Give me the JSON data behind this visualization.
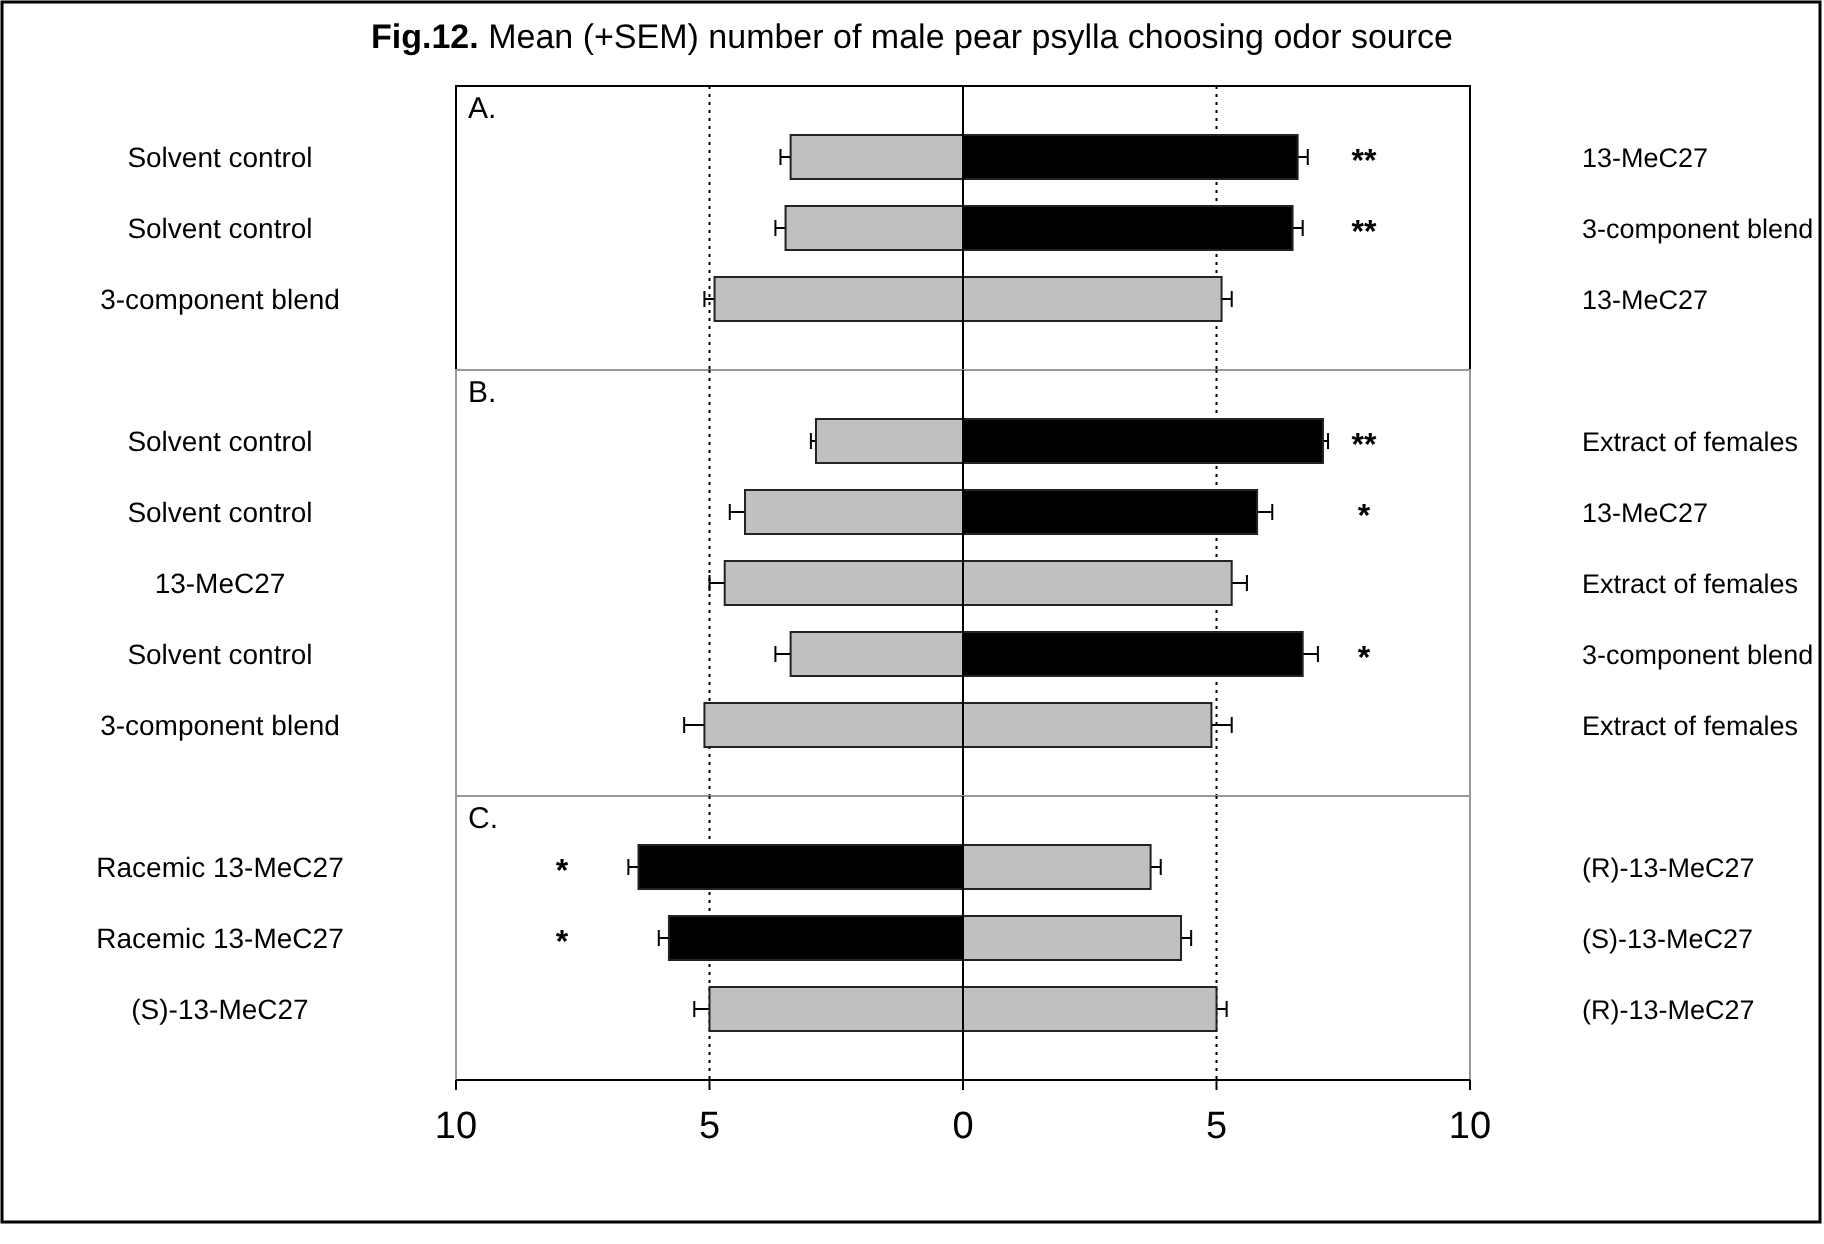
{
  "chart_data": [
    {
      "type": "bar",
      "orientation": "horizontal",
      "stacked": true,
      "title": "Fig.12. Mean (+SEM) number of male pear psylla choosing odor source",
      "categories": [
        "Solvent control",
        "Solvent control",
        "3-component blend"
      ],
      "y2_categories": [
        "13-MeC27",
        "3-component blend",
        "13-MeC27"
      ],
      "series": [
        {
          "colors": [
            "#c0c0c0",
            "#c0c0c0",
            "#c0c0c0"
          ],
          "values": [
            -3.4,
            -3.5,
            -4.9
          ],
          "errors": [
            [
              -3.6,
              -3.4
            ],
            [
              -3.7,
              -3.5
            ],
            [
              -5.1,
              -4.9
            ]
          ]
        },
        {
          "colors": [
            "#000000",
            "#000000",
            "#c0c0c0"
          ],
          "values": [
            6.6,
            6.5,
            5.1
          ],
          "errors": [
            [
              6.6,
              6.8
            ],
            [
              6.5,
              6.7
            ],
            [
              5.1,
              5.3
            ]
          ],
          "value_labels": [
            "**",
            "**",
            null
          ]
        }
      ],
      "xlim": [
        -10,
        10
      ],
      "tick_labels": "y",
      "ref_lines": [
        {
          "axis": "x",
          "value": -5,
          "line_style": "dotted"
        },
        {
          "axis": "x",
          "value": 5,
          "line_style": "dotted"
        }
      ],
      "annotations": [
        "A."
      ]
    },
    {
      "type": "bar",
      "orientation": "horizontal",
      "stacked": true,
      "categories": [
        "Solvent control",
        "Solvent control",
        "13-MeC27",
        "Solvent control",
        "3-component blend"
      ],
      "y2_categories": [
        "Extract of females",
        "13-MeC27",
        "Extract of females",
        "3-component blend",
        "Extract of females"
      ],
      "series": [
        {
          "colors": [
            "#c0c0c0",
            "#c0c0c0",
            "#c0c0c0",
            "#c0c0c0",
            "#c0c0c0"
          ],
          "values": [
            -2.9,
            -4.3,
            -4.7,
            -3.4,
            -5.1
          ],
          "errors": [
            [
              -3.0,
              -2.9
            ],
            [
              -4.6,
              -4.3
            ],
            [
              -5.0,
              -4.7
            ],
            [
              -3.7,
              -3.4
            ],
            [
              -5.5,
              -5.1
            ]
          ]
        },
        {
          "colors": [
            "#000000",
            "#000000",
            "#c0c0c0",
            "#000000",
            "#c0c0c0"
          ],
          "values": [
            7.1,
            5.8,
            5.3,
            6.7,
            4.9
          ],
          "errors": [
            [
              7.1,
              7.2
            ],
            [
              5.8,
              6.1
            ],
            [
              5.3,
              5.6
            ],
            [
              6.7,
              7.0
            ],
            [
              4.9,
              5.3
            ]
          ],
          "value_labels": [
            "**",
            "*",
            null,
            "*",
            null
          ]
        }
      ],
      "xlim": [
        -10,
        10
      ],
      "tick_labels": "y",
      "ref_lines": [
        {
          "axis": "x",
          "value": -5,
          "line_style": "dotted"
        },
        {
          "axis": "x",
          "value": 5,
          "line_style": "dotted"
        }
      ],
      "annotations": [
        "B."
      ]
    },
    {
      "type": "bar",
      "orientation": "horizontal",
      "stacked": true,
      "categories": [
        "Racemic 13-MeC27",
        "Racemic 13-MeC27",
        "(S)-13-MeC27"
      ],
      "y2_categories": [
        "(R)-13-MeC27",
        "(S)-13-MeC27",
        "(R)-13-MeC27"
      ],
      "series": [
        {
          "colors": [
            "#000000",
            "#000000",
            "#c0c0c0"
          ],
          "values": [
            -6.4,
            -5.8,
            -5.0
          ],
          "errors": [
            [
              -6.6,
              -6.4
            ],
            [
              -6.0,
              -5.8
            ],
            [
              -5.3,
              -5.0
            ]
          ],
          "value_labels": [
            "*",
            "*",
            null
          ]
        },
        {
          "colors": [
            "#c0c0c0",
            "#c0c0c0",
            "#c0c0c0"
          ],
          "values": [
            3.7,
            4.3,
            5.0
          ],
          "errors": [
            [
              3.7,
              3.9
            ],
            [
              4.3,
              4.5
            ],
            [
              5.0,
              5.2
            ]
          ]
        }
      ],
      "xlim": [
        -10,
        10
      ],
      "xticks": [
        {
          "value": -10,
          "label": "10"
        },
        {
          "value": -5,
          "label": "5"
        },
        0,
        5,
        10
      ],
      "ref_lines": [
        {
          "axis": "x",
          "value": -5,
          "line_style": "dotted"
        },
        {
          "axis": "x",
          "value": 5,
          "line_style": "dotted"
        }
      ],
      "annotations": [
        "C."
      ]
    }
  ]
}
